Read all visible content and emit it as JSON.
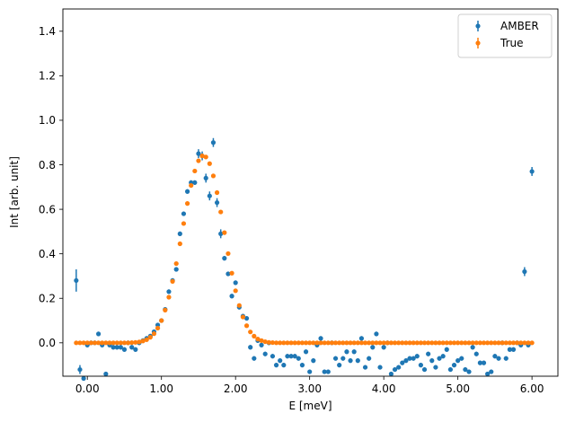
{
  "chart_data": {
    "type": "scatter",
    "title": "",
    "xlabel": "E [meV]",
    "ylabel": "Int [arb. unit]",
    "xlim": [
      -0.33,
      6.35
    ],
    "ylim": [
      -0.15,
      1.5
    ],
    "xticks": [
      0,
      1,
      2,
      3,
      4,
      5,
      6
    ],
    "xtick_labels": [
      "0.00",
      "1.00",
      "2.00",
      "3.00",
      "4.00",
      "5.00",
      "6.00"
    ],
    "yticks": [
      0,
      0.2,
      0.4,
      0.6,
      0.8,
      1.0,
      1.2,
      1.4
    ],
    "ytick_labels": [
      "0.0",
      "0.2",
      "0.4",
      "0.6",
      "0.8",
      "1.0",
      "1.2",
      "1.4"
    ],
    "grid": false,
    "legend_position": "top-right",
    "series": [
      {
        "name": "AMBER",
        "color": "#1f77b4",
        "marker": "circle-with-errorbar",
        "points": [
          [
            -0.15,
            0.28,
            0.05
          ],
          [
            -0.1,
            -0.12,
            0.02
          ],
          [
            -0.05,
            -0.16,
            0.01
          ],
          [
            0.0,
            -0.01,
            0.01
          ],
          [
            0.05,
            0.0,
            0.01
          ],
          [
            0.1,
            0.0,
            0.01
          ],
          [
            0.15,
            0.04,
            0.01
          ],
          [
            0.2,
            -0.01,
            0.01
          ],
          [
            0.25,
            -0.14,
            0.01
          ],
          [
            0.3,
            -0.01,
            0.01
          ],
          [
            0.35,
            -0.02,
            0.01
          ],
          [
            0.4,
            -0.02,
            0.01
          ],
          [
            0.45,
            -0.02,
            0.01
          ],
          [
            0.5,
            -0.03,
            0.01
          ],
          [
            0.55,
            0.0,
            0.01
          ],
          [
            0.6,
            -0.02,
            0.01
          ],
          [
            0.65,
            -0.03,
            0.01
          ],
          [
            0.7,
            0.0,
            0.01
          ],
          [
            0.75,
            0.01,
            0.01
          ],
          [
            0.8,
            0.02,
            0.01
          ],
          [
            0.85,
            0.03,
            0.01
          ],
          [
            0.9,
            0.05,
            0.01
          ],
          [
            0.95,
            0.08,
            0.01
          ],
          [
            1.0,
            0.1,
            0.01
          ],
          [
            1.05,
            0.15,
            0.01
          ],
          [
            1.1,
            0.23,
            0.01
          ],
          [
            1.15,
            0.28,
            0.01
          ],
          [
            1.2,
            0.33,
            0.01
          ],
          [
            1.25,
            0.49,
            0.01
          ],
          [
            1.3,
            0.58,
            0.01
          ],
          [
            1.35,
            0.68,
            0.01
          ],
          [
            1.4,
            0.72,
            0.01
          ],
          [
            1.45,
            0.72,
            0.01
          ],
          [
            1.5,
            0.85,
            0.02
          ],
          [
            1.55,
            0.84,
            0.02
          ],
          [
            1.6,
            0.74,
            0.02
          ],
          [
            1.65,
            0.66,
            0.02
          ],
          [
            1.7,
            0.9,
            0.02
          ],
          [
            1.75,
            0.63,
            0.02
          ],
          [
            1.8,
            0.49,
            0.02
          ],
          [
            1.85,
            0.38,
            0.01
          ],
          [
            1.9,
            0.31,
            0.01
          ],
          [
            1.95,
            0.21,
            0.01
          ],
          [
            2.0,
            0.27,
            0.01
          ],
          [
            2.05,
            0.16,
            0.01
          ],
          [
            2.1,
            0.12,
            0.01
          ],
          [
            2.15,
            0.11,
            0.01
          ],
          [
            2.2,
            -0.02,
            0.01
          ],
          [
            2.25,
            -0.07,
            0.01
          ],
          [
            2.3,
            0.01,
            0.01
          ],
          [
            2.35,
            -0.01,
            0.01
          ],
          [
            2.4,
            -0.05,
            0.01
          ],
          [
            2.45,
            0.0,
            0.01
          ],
          [
            2.5,
            -0.06,
            0.01
          ],
          [
            2.55,
            -0.1,
            0.01
          ],
          [
            2.6,
            -0.08,
            0.01
          ],
          [
            2.65,
            -0.1,
            0.01
          ],
          [
            2.7,
            -0.06,
            0.01
          ],
          [
            2.75,
            -0.06,
            0.01
          ],
          [
            2.8,
            -0.06,
            0.01
          ],
          [
            2.85,
            -0.07,
            0.01
          ],
          [
            2.9,
            -0.1,
            0.01
          ],
          [
            2.95,
            -0.04,
            0.01
          ],
          [
            3.0,
            -0.13,
            0.01
          ],
          [
            3.05,
            -0.08,
            0.01
          ],
          [
            3.1,
            -0.01,
            0.01
          ],
          [
            3.15,
            0.02,
            0.01
          ],
          [
            3.2,
            -0.13,
            0.01
          ],
          [
            3.25,
            -0.13,
            0.01
          ],
          [
            3.3,
            0.0,
            0.01
          ],
          [
            3.35,
            -0.07,
            0.01
          ],
          [
            3.4,
            -0.1,
            0.01
          ],
          [
            3.45,
            -0.07,
            0.01
          ],
          [
            3.5,
            -0.04,
            0.01
          ],
          [
            3.55,
            -0.08,
            0.01
          ],
          [
            3.6,
            -0.04,
            0.01
          ],
          [
            3.65,
            -0.08,
            0.01
          ],
          [
            3.7,
            0.02,
            0.01
          ],
          [
            3.75,
            -0.11,
            0.01
          ],
          [
            3.8,
            -0.07,
            0.01
          ],
          [
            3.85,
            -0.02,
            0.01
          ],
          [
            3.9,
            0.04,
            0.01
          ],
          [
            3.95,
            -0.11,
            0.01
          ],
          [
            4.0,
            -0.02,
            0.01
          ],
          [
            4.05,
            0.0,
            0.01
          ],
          [
            4.1,
            -0.14,
            0.01
          ],
          [
            4.15,
            -0.12,
            0.01
          ],
          [
            4.2,
            -0.11,
            0.01
          ],
          [
            4.25,
            -0.09,
            0.01
          ],
          [
            4.3,
            -0.08,
            0.01
          ],
          [
            4.35,
            -0.07,
            0.01
          ],
          [
            4.4,
            -0.07,
            0.01
          ],
          [
            4.45,
            -0.06,
            0.01
          ],
          [
            4.5,
            -0.1,
            0.01
          ],
          [
            4.55,
            -0.12,
            0.01
          ],
          [
            4.6,
            -0.05,
            0.01
          ],
          [
            4.65,
            -0.08,
            0.01
          ],
          [
            4.7,
            -0.11,
            0.01
          ],
          [
            4.75,
            -0.07,
            0.01
          ],
          [
            4.8,
            -0.06,
            0.01
          ],
          [
            4.85,
            -0.03,
            0.01
          ],
          [
            4.9,
            -0.12,
            0.01
          ],
          [
            4.95,
            -0.1,
            0.01
          ],
          [
            5.0,
            -0.08,
            0.01
          ],
          [
            5.05,
            -0.07,
            0.01
          ],
          [
            5.1,
            -0.12,
            0.01
          ],
          [
            5.15,
            -0.13,
            0.01
          ],
          [
            5.2,
            -0.02,
            0.01
          ],
          [
            5.25,
            -0.05,
            0.01
          ],
          [
            5.3,
            -0.09,
            0.01
          ],
          [
            5.35,
            -0.09,
            0.01
          ],
          [
            5.4,
            -0.14,
            0.01
          ],
          [
            5.45,
            -0.13,
            0.01
          ],
          [
            5.5,
            -0.06,
            0.01
          ],
          [
            5.55,
            -0.07,
            0.01
          ],
          [
            5.6,
            0.0,
            0.01
          ],
          [
            5.65,
            -0.07,
            0.01
          ],
          [
            5.7,
            -0.03,
            0.01
          ],
          [
            5.75,
            -0.03,
            0.01
          ],
          [
            5.8,
            0.0,
            0.01
          ],
          [
            5.85,
            -0.01,
            0.01
          ],
          [
            5.9,
            0.32,
            0.02
          ],
          [
            5.95,
            -0.01,
            0.01
          ],
          [
            6.0,
            0.77,
            0.02
          ]
        ]
      },
      {
        "name": "True",
        "color": "#ff7f0e",
        "marker": "circle-with-errorbar",
        "x_start": -0.15,
        "x_step": 0.05,
        "values": [
          0,
          0,
          0,
          0,
          0,
          0,
          0,
          0,
          0,
          0,
          0,
          0,
          0,
          0,
          0,
          0.001,
          0.002,
          0.004,
          0.008,
          0.014,
          0.025,
          0.041,
          0.066,
          0.1,
          0.147,
          0.205,
          0.276,
          0.356,
          0.445,
          0.536,
          0.626,
          0.707,
          0.772,
          0.818,
          0.84,
          0.835,
          0.805,
          0.75,
          0.675,
          0.588,
          0.495,
          0.401,
          0.313,
          0.234,
          0.168,
          0.116,
          0.077,
          0.049,
          0.03,
          0.017,
          0.01,
          0.005,
          0.002,
          0.001,
          0,
          0,
          0,
          0,
          0,
          0,
          0,
          0,
          0,
          0,
          0,
          0,
          0,
          0,
          0,
          0,
          0,
          0,
          0,
          0,
          0,
          0,
          0,
          0,
          0,
          0,
          0,
          0,
          0,
          0,
          0,
          0,
          0,
          0,
          0,
          0,
          0,
          0,
          0,
          0,
          0,
          0,
          0,
          0,
          0,
          0,
          0,
          0,
          0,
          0,
          0,
          0,
          0,
          0,
          0,
          0,
          0,
          0,
          0,
          0,
          0,
          0,
          0,
          0,
          0,
          0,
          0,
          0,
          0,
          0
        ]
      }
    ]
  }
}
